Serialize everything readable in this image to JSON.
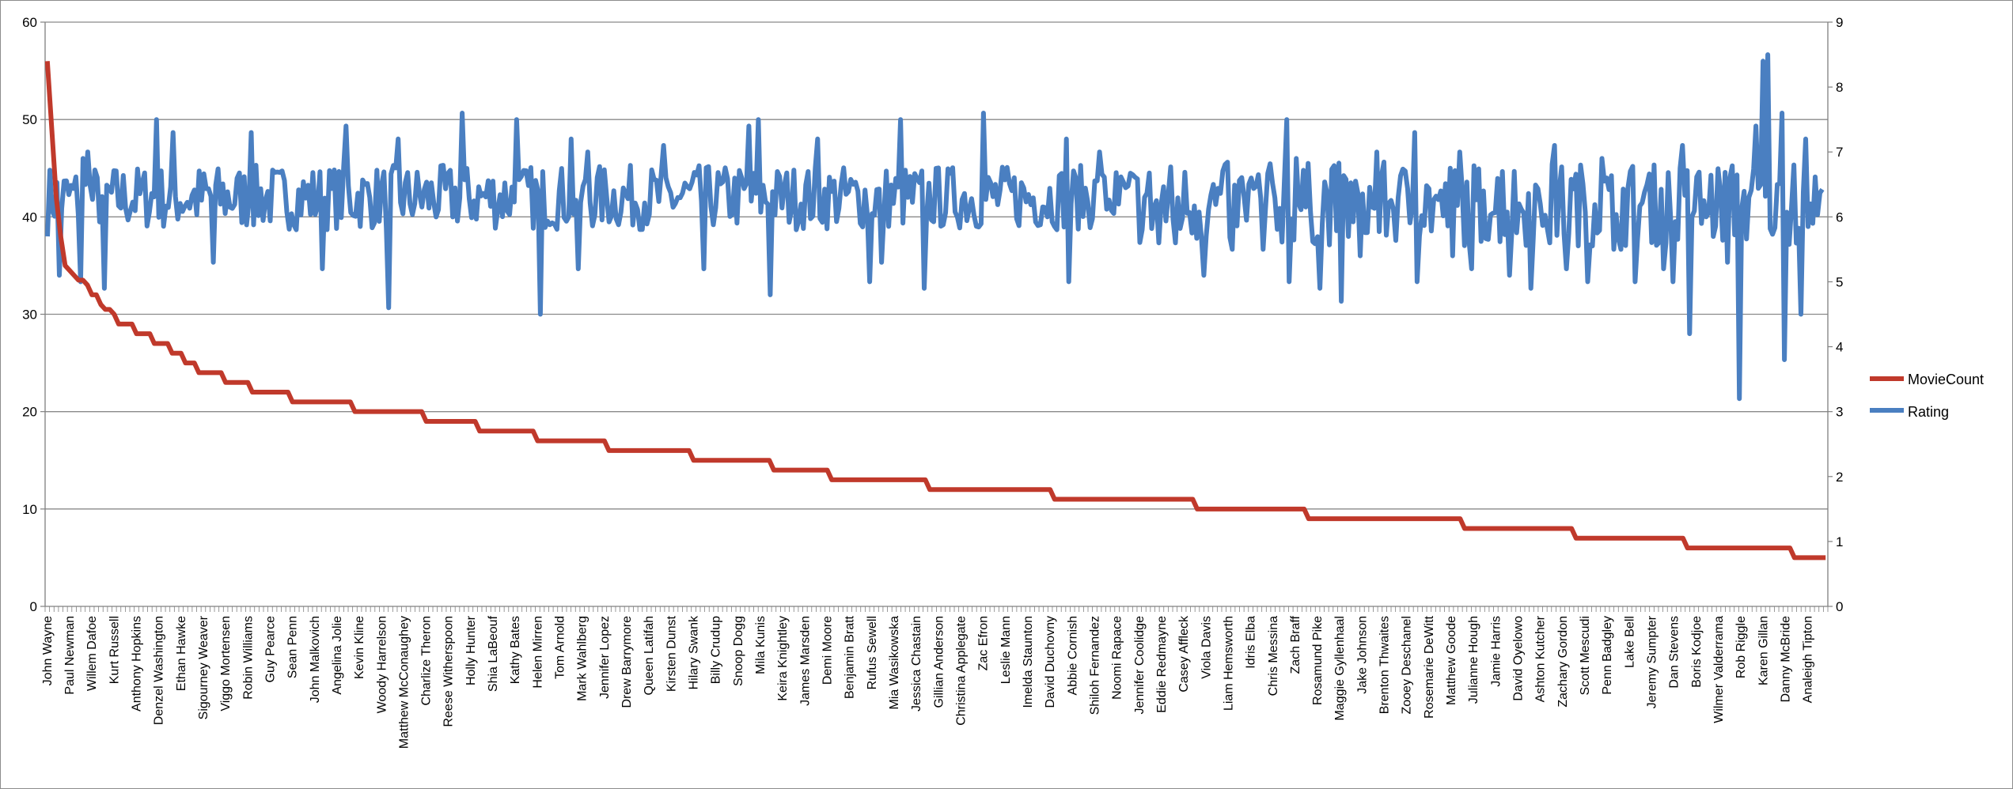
{
  "chart_data": {
    "type": "line",
    "title": "",
    "xlabel": "",
    "ylabel": "",
    "y_left": {
      "min": 0,
      "max": 60,
      "ticks": [
        0,
        10,
        20,
        30,
        40,
        50,
        60
      ]
    },
    "y_right": {
      "min": 0,
      "max": 9,
      "ticks": [
        0,
        1,
        2,
        3,
        4,
        5,
        6,
        7,
        8,
        9
      ]
    },
    "grid": true,
    "legend_position": "right",
    "category_count": 400,
    "categories_labeled": [
      "John Wayne",
      "Paul Newman",
      "Willem Dafoe",
      "Kurt Russell",
      "Anthony Hopkins",
      "Denzel Washington",
      "Ethan Hawke",
      "Sigourney Weaver",
      "Viggo Mortensen",
      "Robin Williams",
      "Guy Pearce",
      "Sean Penn",
      "John Malkovich",
      "Angelina Jolie",
      "Kevin Kline",
      "Woody Harrelson",
      "Matthew McConaughey",
      "Charlize Theron",
      "Reese Witherspoon",
      "Holly Hunter",
      "Shia LaBeouf",
      "Kathy Bates",
      "Helen Mirren",
      "Tom Arnold",
      "Mark Wahlberg",
      "Jennifer Lopez",
      "Drew Barrymore",
      "Queen Latifah",
      "Kirsten Dunst",
      "Hilary Swank",
      "Billy Crudup",
      "Snoop Dogg",
      "Mila Kunis",
      "Keira Knightley",
      "James Marsden",
      "Demi Moore",
      "Benjamin Bratt",
      "Rufus Sewell",
      "Mia Wasikowska",
      "Jessica Chastain",
      "Gillian Anderson",
      "Christina Applegate",
      "Zac Efron",
      "Leslie Mann",
      "Imelda Staunton",
      "David Duchovny",
      "Abbie Cornish",
      "Shiloh Fernandez",
      "Noomi Rapace",
      "Jennifer Coolidge",
      "Eddie Redmayne",
      "Casey Affleck",
      "Viola Davis",
      "Liam Hemsworth",
      "Idris Elba",
      "Chris Messina",
      "Zach Braff",
      "Rosamund Pike",
      "Maggie Gyllenhaal",
      "Jake Johnson",
      "Brenton Thwaites",
      "Zooey Deschanel",
      "Rosemarie DeWitt",
      "Matthew Goode",
      "Julianne Hough",
      "Jamie Harris",
      "David Oyelowo",
      "Ashton Kutcher",
      "Zachary Gordon",
      "Scott Mescudi",
      "Penn Badgley",
      "Lake Bell",
      "Jeremy Sumpter",
      "Dan Stevens",
      "Boris Kodjoe",
      "Wilmer Valderrama",
      "Rob Riggle",
      "Karen Gillan",
      "Danny McBride",
      "Analeigh Tipton"
    ],
    "series": [
      {
        "name": "MovieCount",
        "axis": "left",
        "color": "#c0392b",
        "points": [
          [
            0,
            56
          ],
          [
            1,
            49
          ],
          [
            2,
            42
          ],
          [
            3,
            38
          ],
          [
            4,
            35
          ],
          [
            5,
            34.5
          ],
          [
            6,
            34
          ],
          [
            7,
            33.5
          ],
          [
            9,
            33
          ],
          [
            10,
            32
          ],
          [
            12,
            31
          ],
          [
            13,
            30.5
          ],
          [
            15,
            30
          ],
          [
            16,
            29
          ],
          [
            20,
            28
          ],
          [
            24,
            27
          ],
          [
            28,
            26
          ],
          [
            31,
            25
          ],
          [
            34,
            24
          ],
          [
            40,
            23
          ],
          [
            46,
            22
          ],
          [
            55,
            21
          ],
          [
            69,
            20
          ],
          [
            85,
            19
          ],
          [
            97,
            18
          ],
          [
            110,
            17
          ],
          [
            126,
            16
          ],
          [
            145,
            15
          ],
          [
            163,
            14
          ],
          [
            176,
            13
          ],
          [
            198,
            12
          ],
          [
            226,
            11
          ],
          [
            258,
            10
          ],
          [
            283,
            9
          ],
          [
            318,
            8
          ],
          [
            343,
            7
          ],
          [
            368,
            6
          ],
          [
            392,
            5
          ],
          [
            399,
            5
          ]
        ]
      },
      {
        "name": "Rating",
        "axis": "right",
        "color": "#4a7fc1",
        "seed": 7,
        "base": 6.3,
        "spread": 0.5,
        "spikes": [
          [
            0,
            5.7
          ],
          [
            5,
            5.1
          ],
          [
            14,
            5.0
          ],
          [
            15,
            6.9
          ],
          [
            17,
            7.0
          ],
          [
            24,
            4.9
          ],
          [
            46,
            7.5
          ],
          [
            53,
            7.3
          ],
          [
            70,
            5.3
          ],
          [
            86,
            7.3
          ],
          [
            116,
            5.2
          ],
          [
            126,
            7.4
          ],
          [
            144,
            4.6
          ],
          [
            148,
            7.2
          ],
          [
            175,
            7.6
          ],
          [
            198,
            7.5
          ],
          [
            208,
            4.5
          ],
          [
            221,
            7.2
          ],
          [
            224,
            5.2
          ],
          [
            228,
            7.0
          ],
          [
            260,
            7.1
          ],
          [
            277,
            5.2
          ],
          [
            296,
            7.4
          ],
          [
            300,
            7.5
          ],
          [
            305,
            4.8
          ],
          [
            325,
            7.2
          ],
          [
            347,
            5.0
          ],
          [
            352,
            5.3
          ],
          [
            360,
            7.5
          ],
          [
            370,
            4.9
          ],
          [
            395,
            7.6
          ],
          [
            430,
            7.2
          ],
          [
            431,
            5.0
          ],
          [
            444,
            7.0
          ],
          [
            469,
            5.6
          ],
          [
            476,
            5.6
          ],
          [
            488,
            5.1
          ],
          [
            492,
            6.5
          ],
          [
            500,
            5.5
          ],
          [
            508,
            6.6
          ],
          [
            513,
            5.5
          ],
          [
            523,
            7.5
          ],
          [
            524,
            5.0
          ],
          [
            527,
            6.9
          ],
          [
            537,
            4.9
          ],
          [
            546,
            4.7
          ],
          [
            554,
            5.4
          ],
          [
            561,
            7.0
          ],
          [
            570,
            6.3
          ],
          [
            577,
            7.3
          ],
          [
            578,
            5.0
          ],
          [
            588,
            6.4
          ],
          [
            593,
            5.4
          ],
          [
            596,
            7.0
          ],
          [
            601,
            5.2
          ],
          [
            606,
            6.4
          ],
          [
            614,
            6.7
          ],
          [
            617,
            5.1
          ],
          [
            621,
            6.2
          ],
          [
            626,
            4.9
          ],
          [
            630,
            6.2
          ],
          [
            634,
            5.6
          ],
          [
            636,
            7.1
          ],
          [
            641,
            5.2
          ],
          [
            650,
            5.0
          ],
          [
            656,
            6.9
          ],
          [
            661,
            5.5
          ],
          [
            664,
            5.5
          ],
          [
            670,
            5.0
          ],
          [
            678,
            6.8
          ],
          [
            682,
            5.2
          ],
          [
            686,
            5.0
          ],
          [
            690,
            7.1
          ],
          [
            693,
            4.2
          ],
          [
            700,
            6.0
          ],
          [
            709,
            5.3
          ],
          [
            710,
            6.6
          ],
          [
            714,
            3.2
          ],
          [
            718,
            6.3
          ],
          [
            721,
            7.4
          ],
          [
            724,
            8.4
          ],
          [
            726,
            8.5
          ],
          [
            730,
            6.5
          ],
          [
            732,
            7.6
          ],
          [
            733,
            3.8
          ],
          [
            737,
            6.8
          ],
          [
            740,
            4.5
          ],
          [
            742,
            7.2
          ],
          [
            744,
            6.2
          ]
        ]
      }
    ]
  },
  "legend": {
    "items": [
      "MovieCount",
      "Rating"
    ]
  }
}
